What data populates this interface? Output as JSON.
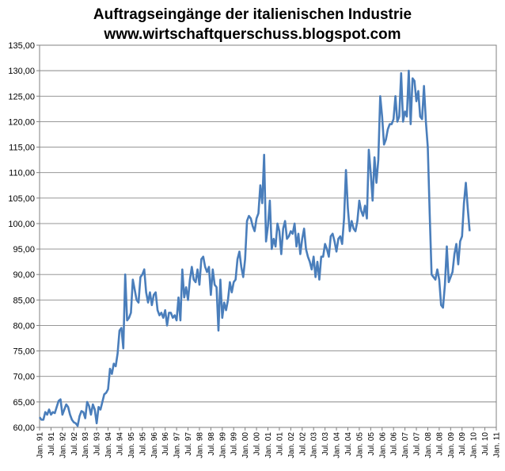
{
  "chart_data": {
    "type": "line",
    "title": "Auftragseingänge der italienischen Industrie",
    "subtitle": "www.wirtschaftquerschuss.blogspot.com",
    "xlabel": "",
    "ylabel": "",
    "ylim": [
      60,
      135
    ],
    "y_ticks": [
      "60,00",
      "65,00",
      "70,00",
      "75,00",
      "80,00",
      "85,00",
      "90,00",
      "95,00",
      "100,00",
      "105,00",
      "110,00",
      "115,00",
      "120,00",
      "125,00",
      "130,00",
      "135,00"
    ],
    "x_ticks": [
      "Jan. 91",
      "Jul. 91",
      "Jan. 92",
      "Jul. 92",
      "Jan. 93",
      "Jul. 93",
      "Jan. 94",
      "Jul. 94",
      "Jan. 95",
      "Jul. 95",
      "Jan. 96",
      "Jul. 96",
      "Jan. 97",
      "Jul. 97",
      "Jan. 98",
      "Jul. 98",
      "Jan. 99",
      "Jul. 99",
      "Jan. 00",
      "Jul. 00",
      "Jan. 01",
      "Jul. 01",
      "Jan. 02",
      "Jul. 02",
      "Jan. 03",
      "Jul. 03",
      "Jan. 04",
      "Jul. 04",
      "Jan. 05",
      "Jul. 05",
      "Jan. 06",
      "Jul. 06",
      "Jan. 07",
      "Jul. 07",
      "Jan. 08",
      "Jul. 08",
      "Jan. 09",
      "Jul. 09",
      "Jan. 10",
      "Jul. 10",
      "Jan. 11"
    ],
    "grid": true,
    "legend": "none",
    "line_color": "#4a7ebb",
    "series": [
      {
        "start": "Jan. 91",
        "values": [
          62.0,
          61.5,
          61.5,
          63.0,
          62.5,
          63.5,
          62.5,
          63.0,
          62.8,
          64.0,
          65.2,
          65.5,
          62.5,
          63.5,
          64.5,
          64.0,
          62.5,
          61.5,
          61.0,
          60.8,
          60.3,
          62.2,
          63.2,
          63.0,
          61.8,
          65.0,
          64.2,
          62.5,
          64.5,
          63.5,
          60.8,
          64.0,
          63.5,
          65.0,
          66.5,
          66.8,
          67.5,
          71.5,
          70.5,
          72.5,
          72.0,
          74.5,
          79.0,
          79.5,
          75.5,
          90.0,
          81.0,
          81.5,
          82.5,
          89.0,
          87.0,
          85.0,
          84.5,
          89.5,
          90.0,
          91.0,
          86.5,
          84.5,
          86.5,
          84.0,
          86.0,
          86.5,
          83.0,
          82.0,
          82.5,
          81.5,
          83.0,
          80.0,
          82.5,
          82.5,
          81.5,
          82.0,
          81.0,
          85.5,
          81.0,
          91.0,
          85.5,
          87.5,
          85.0,
          89.0,
          91.5,
          89.0,
          88.5,
          91.0,
          88.0,
          93.0,
          93.5,
          91.5,
          90.5,
          91.5,
          86.0,
          91.0,
          88.0,
          87.5,
          79.0,
          89.0,
          81.5,
          84.5,
          83.0,
          85.0,
          88.5,
          86.5,
          88.5,
          89.0,
          93.0,
          94.5,
          91.5,
          89.5,
          93.0,
          100.5,
          101.5,
          101.0,
          99.5,
          98.5,
          101.0,
          102.0,
          107.5,
          104.0,
          113.5,
          96.5,
          99.5,
          104.5,
          95.0,
          97.0,
          95.5,
          100.0,
          98.5,
          94.0,
          99.0,
          100.5,
          97.0,
          97.5,
          98.5,
          98.0,
          100.0,
          95.5,
          98.0,
          94.0,
          97.0,
          99.0,
          95.0,
          93.5,
          92.5,
          91.0,
          93.5,
          89.5,
          92.5,
          89.0,
          93.5,
          93.5,
          96.0,
          95.0,
          93.5,
          97.5,
          98.0,
          96.5,
          94.5,
          97.0,
          97.5,
          96.0,
          101.0,
          110.5,
          103.0,
          98.5,
          100.5,
          99.0,
          98.5,
          100.5,
          104.5,
          102.5,
          101.5,
          103.5,
          101.0,
          114.5,
          110.0,
          104.5,
          113.0,
          108.0,
          112.5,
          125.0,
          121.0,
          115.5,
          116.5,
          118.5,
          119.5,
          119.5,
          120.5,
          125.0,
          120.0,
          121.0,
          129.5,
          120.0,
          122.0,
          121.0,
          130.0,
          119.5,
          128.5,
          128.0,
          124.0,
          126.0,
          121.0,
          120.5,
          127.0,
          120.0,
          115.0,
          102.0,
          90.0,
          89.5,
          89.0,
          91.0,
          89.0,
          84.0,
          83.5,
          88.0,
          95.5,
          88.5,
          89.5,
          90.5,
          94.0,
          96.0,
          92.0,
          96.5,
          97.5,
          104.0,
          108.0,
          103.0,
          98.5
        ]
      }
    ]
  }
}
